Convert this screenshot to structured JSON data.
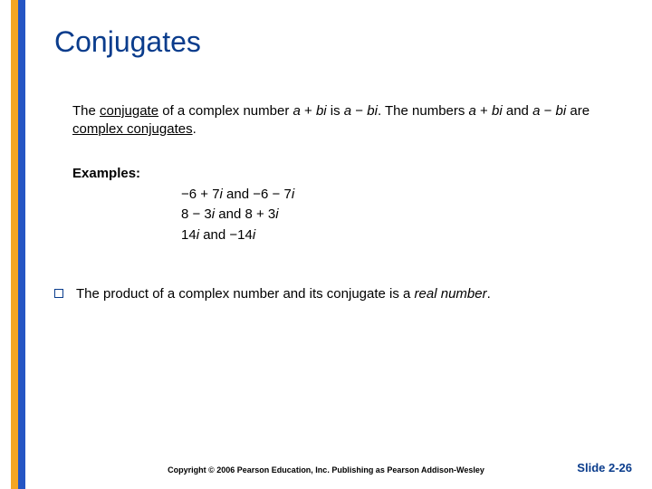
{
  "colors": {
    "title": "#0a3c8c",
    "stripe_orange": "#f5a623",
    "stripe_blue": "#2555c4",
    "bullet_border": "#0a3c8c",
    "slide_num": "#0a3c8c",
    "background": "#ffffff"
  },
  "title": "Conjugates",
  "definition": {
    "part1": "The ",
    "term1": "conjugate",
    "part2": " of a complex number ",
    "expr1_a": "a",
    "expr1_plus": " + ",
    "expr1_bi": "bi",
    "part3": " is ",
    "expr2_a": "a",
    "expr2_minus": " − ",
    "expr2_bi": "bi",
    "part4": ". The numbers ",
    "expr3_a": "a",
    "expr3_plus": " + ",
    "expr3_bi": "bi",
    "part5": " and ",
    "expr4_a": "a",
    "expr4_minus": " − ",
    "expr4_bi": "bi",
    "part6": " are ",
    "term2": "complex conjugates",
    "part7": "."
  },
  "examples": {
    "label": "Examples:",
    "lines": [
      {
        "lhs_pre": "−6 + 7",
        "lhs_i": "i",
        "mid": " and ",
        "rhs_pre": "−6 − 7",
        "rhs_i": "i"
      },
      {
        "lhs_pre": "8 − 3",
        "lhs_i": "i",
        "mid": " and ",
        "rhs_pre": "8 + 3",
        "rhs_i": "i"
      },
      {
        "lhs_pre": "14",
        "lhs_i": "i",
        "mid": " and ",
        "rhs_pre": "−14",
        "rhs_i": "i"
      }
    ]
  },
  "bullet": {
    "part1": "The product of a complex number and its conjugate is a ",
    "emph": "real number",
    "part2": "."
  },
  "footer": {
    "copyright": "Copyright © 2006 Pearson Education, Inc.  Publishing as Pearson Addison-Wesley",
    "slide": "Slide 2-26"
  }
}
